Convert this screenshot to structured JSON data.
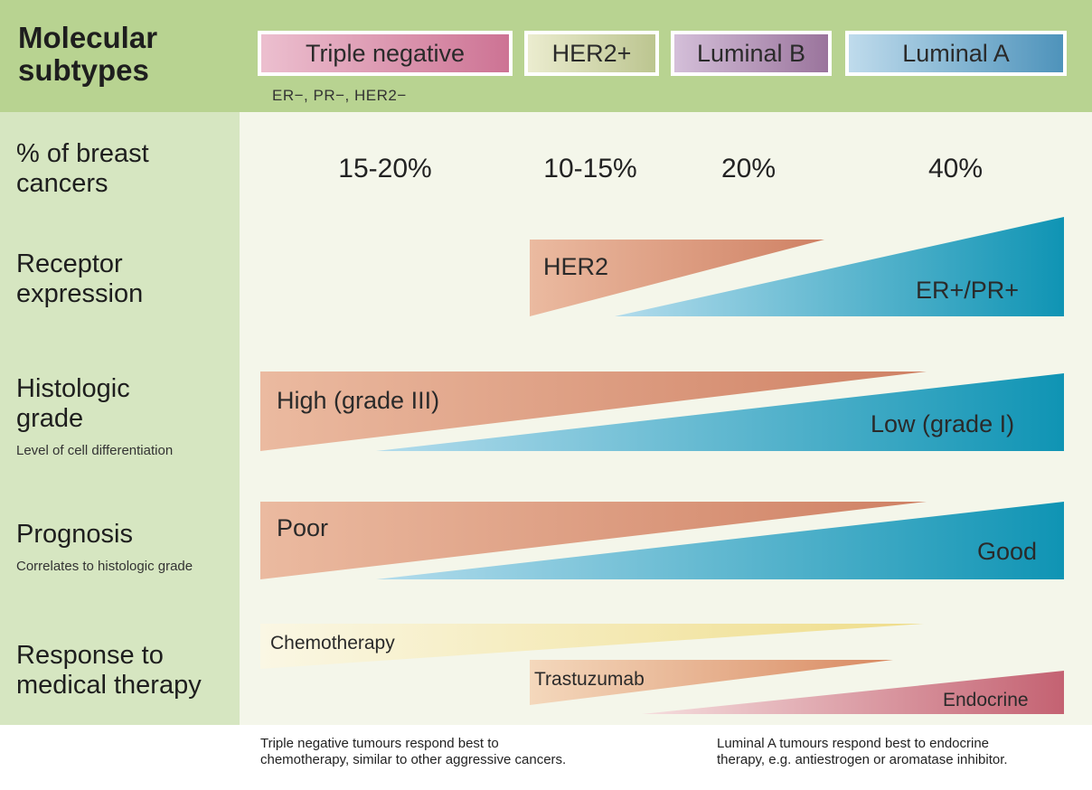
{
  "header": {
    "title_line1": "Molecular",
    "title_line2": "subtypes",
    "triple_negative_note": "ER−, PR−, HER2−"
  },
  "subtypes": [
    {
      "label": "Triple negative",
      "percent": "15-20%"
    },
    {
      "label": "HER2+",
      "percent": "10-15%"
    },
    {
      "label": "Luminal B",
      "percent": "20%"
    },
    {
      "label": "Luminal A",
      "percent": "40%"
    }
  ],
  "rows": {
    "percent": {
      "label_line1": "% of breast",
      "label_line2": "cancers"
    },
    "receptor": {
      "label_line1": "Receptor",
      "label_line2": "expression",
      "her2": "HER2",
      "er_pr": "ER+/PR+"
    },
    "grade": {
      "label_line1": "Histologic",
      "label_line2": "grade",
      "sublabel": "Level of cell differentiation",
      "high": "High (grade III)",
      "low": "Low (grade I)"
    },
    "prognosis": {
      "label": "Prognosis",
      "sublabel": "Correlates to histologic grade",
      "poor": "Poor",
      "good": "Good"
    },
    "therapy": {
      "label_line1": "Response to",
      "label_line2": "medical therapy",
      "chemo": "Chemotherapy",
      "trastuzumab": "Trastuzumab",
      "endocrine": "Endocrine"
    }
  },
  "footnotes": {
    "left_line1": "Triple negative tumours respond best to",
    "left_line2": "chemotherapy, similar to other aggressive cancers.",
    "right_line1": "Luminal A tumours respond best to endocrine",
    "right_line2": "therapy, e.g. antiestrogen or aromatase inhibitor."
  },
  "colors": {
    "header_band": "#b8d391",
    "side_panel": "#d6e6c1",
    "main_panel": "#f4f6ea",
    "salmon_light": "#e9b59a",
    "salmon_dark": "#cf8366",
    "blue_light": "#a8d4e8",
    "blue_dark": "#0f94b4",
    "chemo_light": "#f8f4dc",
    "chemo_dark": "#f0e090",
    "trastuzumab_light": "#f2d2b4",
    "trastuzumab_dark": "#d98e66",
    "endocrine_light": "#f1d0d0",
    "endocrine_dark": "#c56a76"
  }
}
